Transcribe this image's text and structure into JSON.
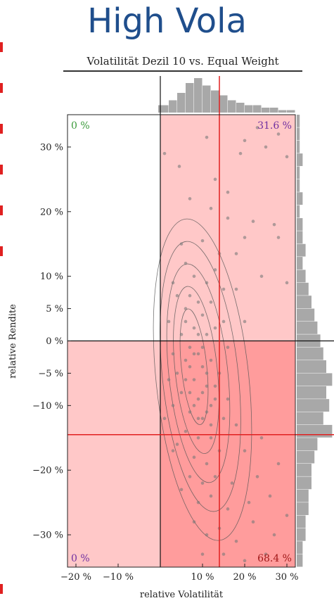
{
  "header": {
    "title": "High Vola"
  },
  "chart_data": {
    "type": "scatter",
    "title": "Volatilität Dezil 10 vs. Equal Weight",
    "xlabel": "relative Volatilität",
    "ylabel": "relative Rendite",
    "xlim": [
      -22,
      32
    ],
    "ylim": [
      -35,
      35
    ],
    "xticks": [
      -20,
      -10,
      10,
      20,
      30
    ],
    "xtick_labels": [
      "−20 %",
      "−10 %",
      "10 %",
      "20 %",
      "30 %"
    ],
    "yticks": [
      30,
      20,
      10,
      5,
      0,
      -5,
      -10,
      -20,
      -30
    ],
    "ytick_labels": [
      "30 %",
      "20 %",
      "10 %",
      "5 %",
      "0 %",
      "−5 %",
      "−10 %",
      "−20 %",
      "−30 %"
    ],
    "zero_lines": {
      "x": 0,
      "y": 0
    },
    "mean_lines": {
      "x": 14,
      "y": -14.5
    },
    "quadrant_labels": {
      "top_left": "0 %",
      "top_right": "31.6 %",
      "bottom_left": "0 %",
      "bottom_right": "68.4 %"
    },
    "colors": {
      "title": "#1f4e8c",
      "shade_light": "#ffc8c8",
      "shade_dark": "#ff9c9c",
      "mean_line": "#e02020",
      "points": "#7a7a7a",
      "histogram": "#a8a8a8",
      "label_green": "#3a9a3a",
      "label_purple": "#7030a0",
      "label_darkred": "#a01818"
    },
    "grid": false,
    "points": [
      [
        1,
        29
      ],
      [
        4.5,
        27
      ],
      [
        11,
        31.5
      ],
      [
        13,
        25
      ],
      [
        16,
        23
      ],
      [
        19,
        29
      ],
      [
        20,
        31
      ],
      [
        23,
        33
      ],
      [
        25,
        30
      ],
      [
        28,
        32
      ],
      [
        30,
        28.5
      ],
      [
        7,
        22
      ],
      [
        12,
        20.5
      ],
      [
        16,
        19
      ],
      [
        22,
        18.5
      ],
      [
        27,
        18
      ],
      [
        28,
        16
      ],
      [
        20,
        16
      ],
      [
        5,
        15
      ],
      [
        10,
        15.5
      ],
      [
        14,
        13.5
      ],
      [
        18,
        13.5
      ],
      [
        6,
        12
      ],
      [
        8,
        10
      ],
      [
        11,
        9
      ],
      [
        13,
        11
      ],
      [
        15,
        8
      ],
      [
        3,
        9
      ],
      [
        7,
        7
      ],
      [
        9,
        6
      ],
      [
        12,
        6
      ],
      [
        18,
        8
      ],
      [
        24,
        10
      ],
      [
        30,
        9
      ],
      [
        4,
        7
      ],
      [
        10,
        4
      ],
      [
        15,
        3
      ],
      [
        2,
        3
      ],
      [
        6,
        3
      ],
      [
        8,
        2
      ],
      [
        11,
        1
      ],
      [
        13,
        2
      ],
      [
        20,
        3
      ],
      [
        5,
        1
      ],
      [
        7,
        -1
      ],
      [
        9,
        -2
      ],
      [
        12,
        -3
      ],
      [
        16,
        -1
      ],
      [
        3,
        -2
      ],
      [
        6,
        -3
      ],
      [
        10,
        -4
      ],
      [
        14,
        -5
      ],
      [
        4,
        -5
      ],
      [
        8,
        -6
      ],
      [
        11,
        -7
      ],
      [
        13,
        -7
      ],
      [
        5,
        -8
      ],
      [
        9,
        -9
      ],
      [
        12,
        -10
      ],
      [
        16,
        -9
      ],
      [
        3,
        -10
      ],
      [
        7,
        -11
      ],
      [
        10,
        -12
      ],
      [
        15,
        -12
      ],
      [
        6,
        -14
      ],
      [
        9,
        -15
      ],
      [
        12,
        -15
      ],
      [
        18,
        -13
      ],
      [
        4,
        -16
      ],
      [
        8,
        -18
      ],
      [
        11,
        -19
      ],
      [
        14,
        -17
      ],
      [
        20,
        -17
      ],
      [
        24,
        -15
      ],
      [
        7,
        -21
      ],
      [
        10,
        -22
      ],
      [
        13,
        -21
      ],
      [
        17,
        -22
      ],
      [
        23,
        -21
      ],
      [
        28,
        -19
      ],
      [
        5,
        -23
      ],
      [
        9,
        -25
      ],
      [
        12,
        -24
      ],
      [
        16,
        -26
      ],
      [
        21,
        -25
      ],
      [
        26,
        -24
      ],
      [
        8,
        -28
      ],
      [
        11,
        -30
      ],
      [
        14,
        -29
      ],
      [
        18,
        -31
      ],
      [
        22,
        -28
      ],
      [
        27,
        -30
      ],
      [
        30,
        -27
      ],
      [
        10,
        -33
      ],
      [
        15,
        -33
      ],
      [
        20,
        -34
      ],
      [
        25,
        -33
      ],
      [
        3,
        -17
      ],
      [
        1,
        -12
      ],
      [
        2,
        -6
      ],
      [
        6,
        5
      ],
      [
        7,
        -4
      ],
      [
        8,
        -2
      ],
      [
        9,
        1
      ],
      [
        10,
        -1
      ],
      [
        11,
        -5
      ],
      [
        6,
        -6
      ],
      [
        7,
        -8
      ],
      [
        8,
        -10
      ],
      [
        9,
        -12
      ],
      [
        10,
        -8
      ],
      [
        11,
        -11
      ],
      [
        12,
        -13
      ],
      [
        13,
        -9
      ]
    ],
    "hist_x": [
      {
        "from": -0.5,
        "to": 2,
        "count": 3
      },
      {
        "from": 2,
        "to": 4,
        "count": 5
      },
      {
        "from": 4,
        "to": 6,
        "count": 8
      },
      {
        "from": 6,
        "to": 8,
        "count": 12
      },
      {
        "from": 8,
        "to": 10,
        "count": 14
      },
      {
        "from": 10,
        "to": 12,
        "count": 11
      },
      {
        "from": 12,
        "to": 14,
        "count": 9
      },
      {
        "from": 14,
        "to": 16,
        "count": 7
      },
      {
        "from": 16,
        "to": 18,
        "count": 5
      },
      {
        "from": 18,
        "to": 20,
        "count": 4
      },
      {
        "from": 20,
        "to": 22,
        "count": 3
      },
      {
        "from": 22,
        "to": 24,
        "count": 3
      },
      {
        "from": 24,
        "to": 26,
        "count": 2
      },
      {
        "from": 26,
        "to": 28,
        "count": 2
      },
      {
        "from": 28,
        "to": 30,
        "count": 1
      },
      {
        "from": 30,
        "to": 32,
        "count": 1
      }
    ],
    "hist_y": [
      {
        "from": 33,
        "to": 35,
        "count": 1
      },
      {
        "from": 31,
        "to": 33,
        "count": 1
      },
      {
        "from": 29,
        "to": 31,
        "count": 1
      },
      {
        "from": 27,
        "to": 29,
        "count": 2
      },
      {
        "from": 25,
        "to": 27,
        "count": 1
      },
      {
        "from": 23,
        "to": 25,
        "count": 1
      },
      {
        "from": 21,
        "to": 23,
        "count": 2
      },
      {
        "from": 19,
        "to": 21,
        "count": 1
      },
      {
        "from": 17,
        "to": 19,
        "count": 2
      },
      {
        "from": 15,
        "to": 17,
        "count": 2
      },
      {
        "from": 13,
        "to": 15,
        "count": 3
      },
      {
        "from": 11,
        "to": 13,
        "count": 2
      },
      {
        "from": 9,
        "to": 11,
        "count": 3
      },
      {
        "from": 7,
        "to": 9,
        "count": 4
      },
      {
        "from": 5,
        "to": 7,
        "count": 5
      },
      {
        "from": 3,
        "to": 5,
        "count": 6
      },
      {
        "from": 1,
        "to": 3,
        "count": 7
      },
      {
        "from": -1,
        "to": 1,
        "count": 8
      },
      {
        "from": -3,
        "to": -1,
        "count": 9
      },
      {
        "from": -5,
        "to": -3,
        "count": 10
      },
      {
        "from": -7,
        "to": -5,
        "count": 12
      },
      {
        "from": -9,
        "to": -7,
        "count": 10
      },
      {
        "from": -11,
        "to": -9,
        "count": 11
      },
      {
        "from": -13,
        "to": -11,
        "count": 9
      },
      {
        "from": -15,
        "to": -13,
        "count": 12
      },
      {
        "from": -17,
        "to": -15,
        "count": 7
      },
      {
        "from": -19,
        "to": -17,
        "count": 6
      },
      {
        "from": -21,
        "to": -19,
        "count": 5
      },
      {
        "from": -23,
        "to": -21,
        "count": 5
      },
      {
        "from": -25,
        "to": -23,
        "count": 4
      },
      {
        "from": -27,
        "to": -25,
        "count": 4
      },
      {
        "from": -29,
        "to": -27,
        "count": 3
      },
      {
        "from": -31,
        "to": -29,
        "count": 3
      },
      {
        "from": -33,
        "to": -31,
        "count": 2
      },
      {
        "from": -35,
        "to": -33,
        "count": 2
      }
    ],
    "density_contours": [
      {
        "center": [
          8,
          -4
        ],
        "radius": [
          3,
          9
        ]
      },
      {
        "center": [
          8.5,
          -4.5
        ],
        "radius": [
          5,
          13
        ]
      },
      {
        "center": [
          9,
          -5
        ],
        "radius": [
          7,
          17
        ]
      },
      {
        "center": [
          9.5,
          -5.5
        ],
        "radius": [
          9,
          21
        ]
      },
      {
        "center": [
          10,
          -6
        ],
        "radius": [
          11,
          25
        ]
      }
    ]
  }
}
